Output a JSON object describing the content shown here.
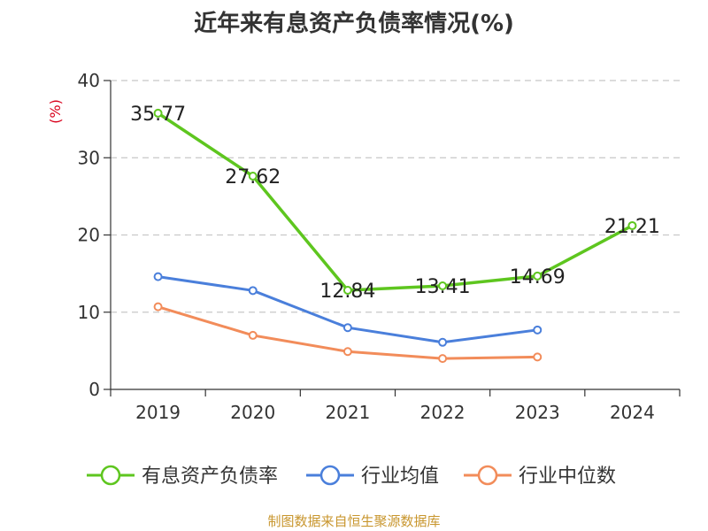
{
  "chart_data": {
    "type": "line",
    "title": "近年来有息资产负债率情况(%)",
    "ylabel": "(%)",
    "xlabel": "",
    "ylim": [
      0,
      40
    ],
    "yticks": [
      0,
      10,
      20,
      30,
      40
    ],
    "categories": [
      "2019",
      "2020",
      "2021",
      "2022",
      "2023",
      "2024"
    ],
    "series": [
      {
        "name": "有息资产负债率",
        "color": "#5ec61f",
        "values": [
          35.77,
          27.62,
          12.84,
          13.41,
          14.69,
          21.21
        ],
        "labels": [
          "35.77",
          "27.62",
          "12.84",
          "13.41",
          "14.69",
          "21.21"
        ]
      },
      {
        "name": "行业均值",
        "color": "#4a7fdb",
        "values": [
          14.6,
          12.8,
          8.0,
          6.1,
          7.7,
          null
        ]
      },
      {
        "name": "行业中位数",
        "color": "#f28c5a",
        "values": [
          10.7,
          7.0,
          4.9,
          4.0,
          4.2,
          null
        ]
      }
    ],
    "grid": true,
    "legend": "bottom"
  },
  "source": {
    "text": "制图数据来自恒生聚源数据库",
    "color": "#c8962e"
  },
  "colors": {
    "axis": "#333333",
    "grid": "#c8c8c8",
    "ylabel": "#d9001b"
  }
}
